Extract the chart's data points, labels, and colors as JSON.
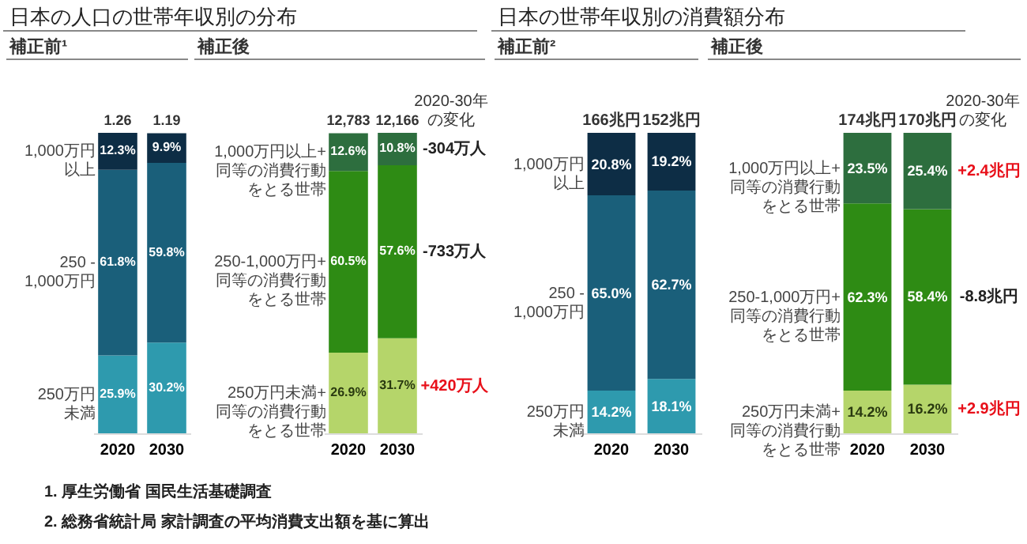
{
  "chart_data": [
    {
      "type": "bar",
      "stacked": true,
      "title": "日本の人口の世帯年収別の分布",
      "subtitle": "補正前¹",
      "categories": [
        "2020",
        "2030"
      ],
      "tick_labels": "x",
      "series": [
        {
          "name": "250万円未満",
          "color": "#2e9aae",
          "values": [
            25.9,
            30.2
          ],
          "value_labels": [
            "25.9%",
            "30.2%"
          ]
        },
        {
          "name": "250 - 1,000万円",
          "color": "#1a5f7a",
          "values": [
            61.8,
            59.8
          ],
          "value_labels": [
            "61.8%",
            "59.8%"
          ]
        },
        {
          "name": "1,000万円以上",
          "color": "#0d2d45",
          "values": [
            12.3,
            9.9
          ],
          "value_labels": [
            "12.3%",
            "9.9%"
          ]
        }
      ],
      "annotations": [
        {
          "text": "1.26",
          "x": "2020",
          "y": 100
        },
        {
          "text": "1.19",
          "x": "2030",
          "y": 100
        },
        "1. 厚生労働省 国民生活基礎調査",
        "2. 総務省統計局 家計調査の平均消費支出額を基に算出"
      ]
    },
    {
      "type": "bar",
      "stacked": true,
      "subtitle": "補正後",
      "categories": [
        "2020",
        "2030"
      ],
      "tick_labels": "x",
      "series": [
        {
          "name": "250万円未満+同等の消費行動をとる世帯",
          "color": "#b5d56a",
          "values": [
            26.9,
            31.7
          ],
          "value_labels": [
            "26.9%",
            "31.7%"
          ]
        },
        {
          "name": "250-1,000万円+同等の消費行動をとる世帯",
          "color": "#2e8b14",
          "values": [
            60.5,
            57.6
          ],
          "value_labels": [
            "60.5%",
            "57.6%"
          ]
        },
        {
          "name": "1,000万円以上+同等の消費行動をとる世帯",
          "color": "#2d6e3e",
          "values": [
            12.6,
            10.8
          ],
          "value_labels": [
            "12.6%",
            "10.8%"
          ]
        }
      ],
      "annotations": [
        {
          "text": "12,783",
          "x": "2020",
          "y": 100
        },
        {
          "text": "12,166",
          "x": "2030",
          "y": 100
        },
        "2020-30年の変化",
        "-304万人",
        "-733万人",
        "+420万人"
      ]
    },
    {
      "type": "bar",
      "stacked": true,
      "title": "日本の世帯年収別の消費額分布",
      "subtitle": "補正前²",
      "categories": [
        "2020",
        "2030"
      ],
      "tick_labels": "x",
      "series": [
        {
          "name": "250万円未満",
          "color": "#2e9aae",
          "values": [
            14.2,
            18.1
          ],
          "value_labels": [
            "14.2%",
            "18.1%"
          ]
        },
        {
          "name": "250 - 1,000万円",
          "color": "#1a5f7a",
          "values": [
            65.0,
            62.7
          ],
          "value_labels": [
            "65.0%",
            "62.7%"
          ]
        },
        {
          "name": "1,000万円以上",
          "color": "#0d2d45",
          "values": [
            20.8,
            19.2
          ],
          "value_labels": [
            "20.8%",
            "19.2%"
          ]
        }
      ],
      "annotations": [
        {
          "text": "166兆円",
          "x": "2020",
          "y": 100
        },
        {
          "text": "152兆円",
          "x": "2030",
          "y": 100
        }
      ]
    },
    {
      "type": "bar",
      "stacked": true,
      "subtitle": "補正後",
      "categories": [
        "2020",
        "2030"
      ],
      "tick_labels": "x",
      "series": [
        {
          "name": "250万円未満+同等の消費行動をとる世帯",
          "color": "#b5d56a",
          "values": [
            14.2,
            16.2
          ],
          "value_labels": [
            "14.2%",
            "16.2%"
          ]
        },
        {
          "name": "250-1,000万円+同等の消費行動をとる世帯",
          "color": "#2e8b14",
          "values": [
            62.3,
            58.4
          ],
          "value_labels": [
            "62.3%",
            "58.4%"
          ]
        },
        {
          "name": "1,000万円以上+同等の消費行動をとる世帯",
          "color": "#2d6e3e",
          "values": [
            23.5,
            25.4
          ],
          "value_labels": [
            "23.5%",
            "25.4%"
          ]
        }
      ],
      "annotations": [
        {
          "text": "174兆円",
          "x": "2020",
          "y": 100
        },
        {
          "text": "170兆円",
          "x": "2030",
          "y": 100
        },
        "2020-30年の変化",
        "+2.4兆円",
        "-8.8兆円",
        "+2.9兆円"
      ]
    }
  ]
}
